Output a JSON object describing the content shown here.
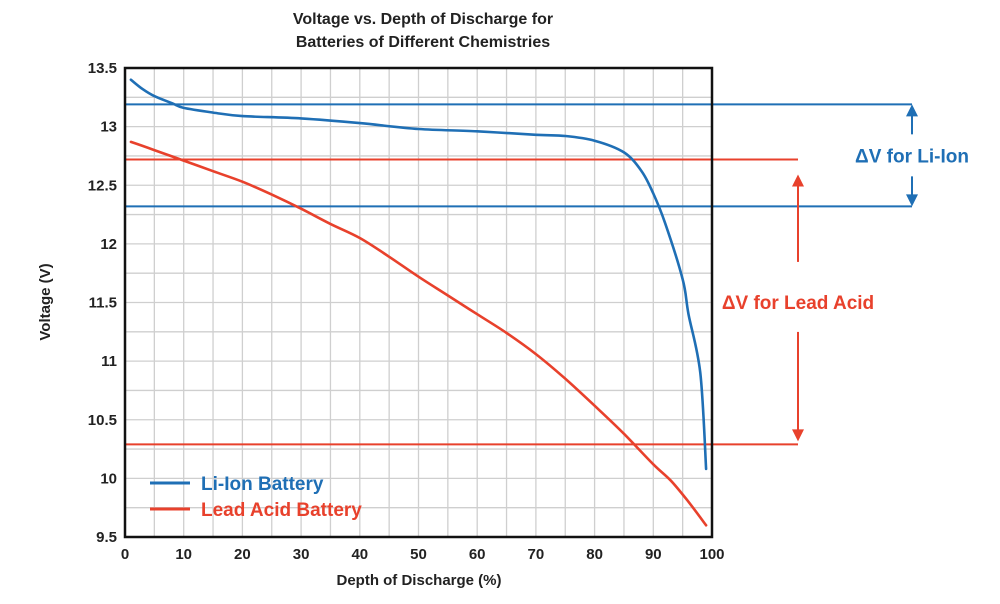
{
  "chart_data": {
    "type": "line",
    "title_line1": "Voltage vs. Depth of Discharge for",
    "title_line2": "Batteries of Different Chemistries",
    "xlabel": "Depth of Discharge (%)",
    "ylabel": "Voltage (V)",
    "xlim": [
      0,
      100
    ],
    "ylim": [
      9.5,
      13.5
    ],
    "x_ticks": [
      "0",
      "10",
      "20",
      "30",
      "40",
      "50",
      "60",
      "70",
      "80",
      "90",
      "100"
    ],
    "y_ticks": [
      "9.5",
      "10",
      "10.5",
      "11",
      "11.5",
      "12",
      "12.5",
      "13",
      "13.5"
    ],
    "grid": true,
    "legend_position": "bottom-left",
    "series": [
      {
        "name": "Li-Ion Battery",
        "color": "#1f6fb5",
        "x": [
          1,
          3,
          5,
          8,
          10,
          15,
          20,
          30,
          40,
          50,
          60,
          70,
          75,
          80,
          85,
          88,
          90,
          92,
          95,
          96,
          98,
          99
        ],
        "y": [
          13.4,
          13.32,
          13.26,
          13.2,
          13.16,
          13.12,
          13.09,
          13.07,
          13.03,
          12.98,
          12.96,
          12.93,
          12.92,
          12.88,
          12.78,
          12.62,
          12.43,
          12.18,
          11.7,
          11.4,
          10.9,
          10.08
        ]
      },
      {
        "name": "Lead Acid Battery",
        "color": "#e8412c",
        "x": [
          1,
          5,
          10,
          15,
          20,
          25,
          30,
          35,
          40,
          45,
          50,
          55,
          60,
          65,
          70,
          75,
          80,
          85,
          90,
          93,
          96,
          99
        ],
        "y": [
          12.87,
          12.8,
          12.71,
          12.62,
          12.53,
          12.42,
          12.3,
          12.17,
          12.05,
          11.89,
          11.72,
          11.56,
          11.4,
          11.24,
          11.06,
          10.85,
          10.62,
          10.38,
          10.12,
          9.98,
          9.8,
          9.6
        ]
      }
    ],
    "annotations": [
      {
        "label": "ΔV for Li-Ion",
        "color": "#1f6fb5",
        "upper": 13.19,
        "lower": 12.32
      },
      {
        "label": "ΔV for Lead Acid",
        "color": "#e8412c",
        "upper": 12.72,
        "lower": 10.29
      }
    ]
  }
}
